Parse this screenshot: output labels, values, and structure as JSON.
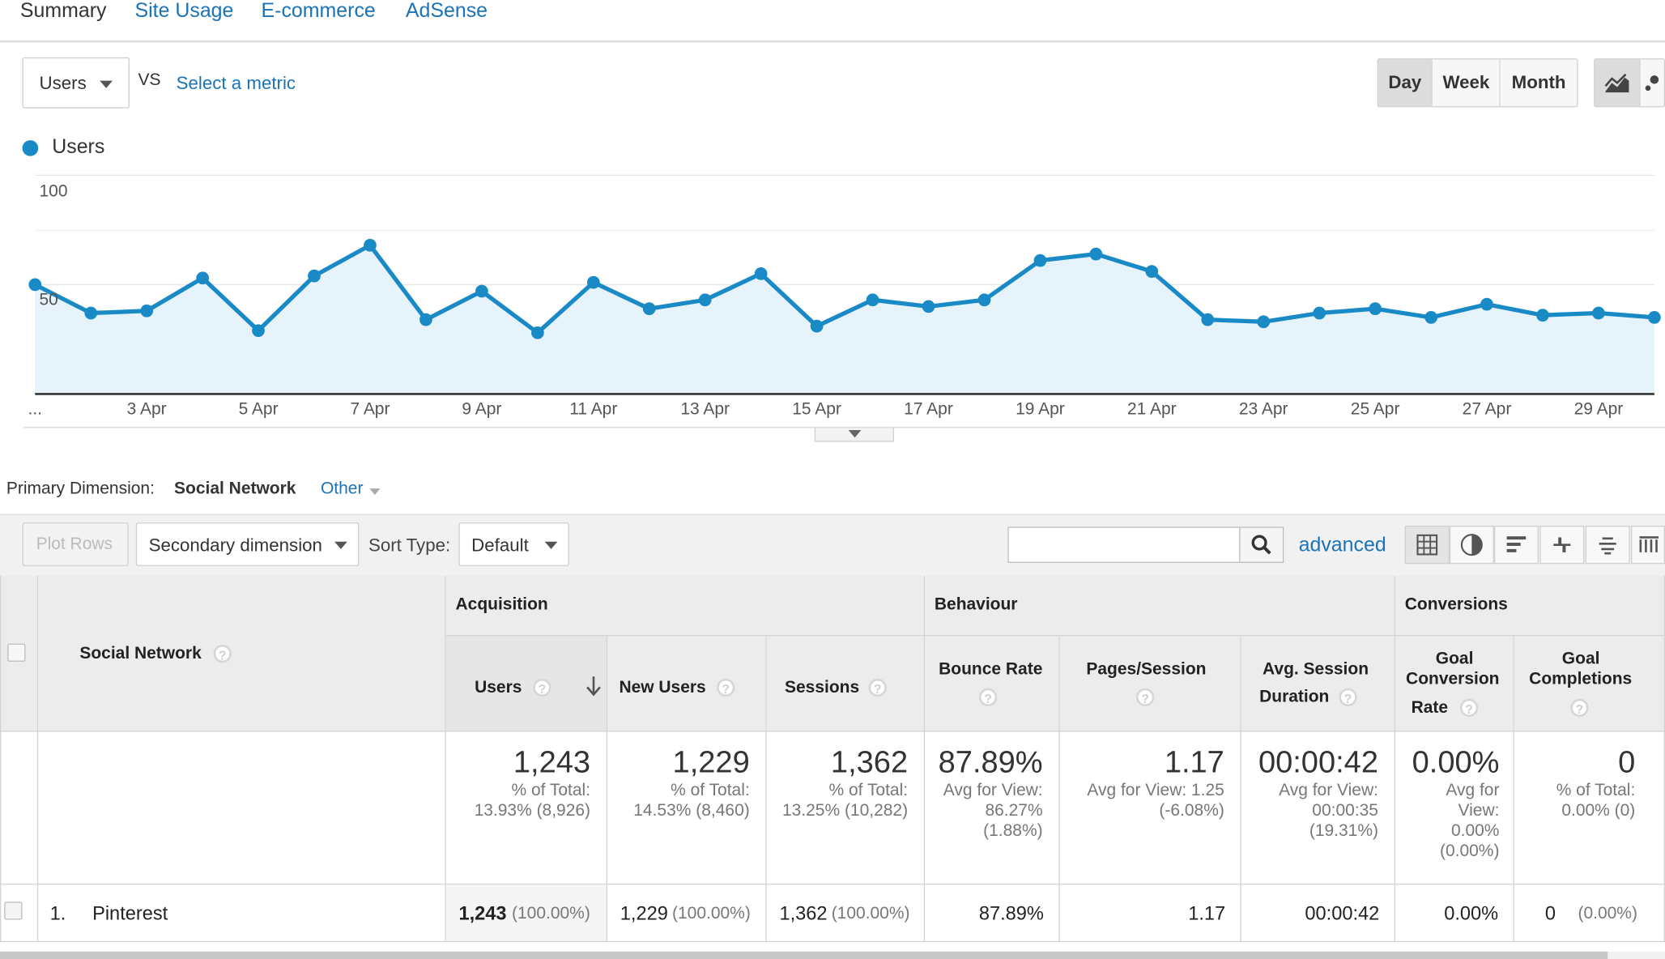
{
  "tabs": [
    "Summary",
    "Site Usage",
    "E-commerce",
    "AdSense"
  ],
  "metric": {
    "selected": "Users",
    "vs": "VS",
    "select_link": "Select a metric"
  },
  "time_buttons": [
    "Day",
    "Week",
    "Month"
  ],
  "time_selected": "Day",
  "chart_data": {
    "type": "area",
    "legend": "Users",
    "color": "#1a8ac6",
    "y_ticks": [
      "100",
      "50"
    ],
    "ylim": [
      0,
      100
    ],
    "x_tick_labels": [
      "...",
      "3 Apr",
      "5 Apr",
      "7 Apr",
      "9 Apr",
      "11 Apr",
      "13 Apr",
      "15 Apr",
      "17 Apr",
      "19 Apr",
      "21 Apr",
      "23 Apr",
      "25 Apr",
      "27 Apr",
      "29 Apr"
    ],
    "x": [
      "1 Apr",
      "2 Apr",
      "3 Apr",
      "4 Apr",
      "5 Apr",
      "6 Apr",
      "7 Apr",
      "8 Apr",
      "9 Apr",
      "10 Apr",
      "11 Apr",
      "12 Apr",
      "13 Apr",
      "14 Apr",
      "15 Apr",
      "16 Apr",
      "17 Apr",
      "18 Apr",
      "19 Apr",
      "20 Apr",
      "21 Apr",
      "22 Apr",
      "23 Apr",
      "24 Apr",
      "25 Apr",
      "26 Apr",
      "27 Apr",
      "28 Apr",
      "29 Apr",
      "30 Apr"
    ],
    "values": [
      50,
      37,
      38,
      53,
      29,
      54,
      68,
      34,
      47,
      28,
      51,
      39,
      43,
      55,
      31,
      43,
      40,
      43,
      61,
      64,
      56,
      34,
      33,
      37,
      39,
      35,
      41,
      36,
      37,
      35
    ]
  },
  "primary_dimension": {
    "label": "Primary Dimension:",
    "value": "Social Network",
    "other": "Other"
  },
  "toolbar": {
    "plot_rows": "Plot Rows",
    "secondary_dimension": "Secondary dimension",
    "sort_type_label": "Sort Type:",
    "sort_type_value": "Default",
    "search_placeholder": "",
    "advanced": "advanced"
  },
  "table": {
    "groups": {
      "acquisition": "Acquisition",
      "behaviour": "Behaviour",
      "conversions": "Conversions"
    },
    "dimension_header": "Social Network",
    "columns": {
      "users": "Users",
      "new_users": "New Users",
      "sessions": "Sessions",
      "bounce_rate": "Bounce Rate",
      "pages_session": "Pages/Session",
      "avg_session_duration_1": "Avg. Session",
      "avg_session_duration_2": "Duration",
      "goal_conv_1": "Goal",
      "goal_conv_2": "Conversion",
      "goal_conv_3": "Rate",
      "goal_comp_1": "Goal",
      "goal_comp_2": "Completions"
    },
    "totals": {
      "users": {
        "value": "1,243",
        "line1": "% of Total:",
        "line2": "13.93% (8,926)"
      },
      "new_users": {
        "value": "1,229",
        "line1": "% of Total:",
        "line2": "14.53% (8,460)"
      },
      "sessions": {
        "value": "1,362",
        "line1": "% of Total:",
        "line2": "13.25% (10,282)"
      },
      "bounce_rate": {
        "value": "87.89%",
        "line1": "Avg for View:",
        "line2": "86.27%",
        "line3": "(1.88%)"
      },
      "pages_session": {
        "value": "1.17",
        "line1": "Avg for View: 1.25",
        "line2": "(-6.08%)"
      },
      "avg_session_duration": {
        "value": "00:00:42",
        "line1": "Avg for View:",
        "line2": "00:00:35",
        "line3": "(19.31%)"
      },
      "goal_conversion_rate": {
        "value": "0.00%",
        "line1": "Avg for",
        "line2": "View:",
        "line3": "0.00%",
        "line4": "(0.00%)"
      },
      "goal_completions": {
        "value": "0",
        "line1": "% of Total:",
        "line2": "0.00% (0)"
      }
    },
    "rows": [
      {
        "index": "1.",
        "network": "Pinterest",
        "users": "1,243",
        "users_pct": "(100.00%)",
        "new_users": "1,229",
        "new_users_pct": "(100.00%)",
        "sessions": "1,362",
        "sessions_pct": "(100.00%)",
        "bounce_rate": "87.89%",
        "pages_session": "1.17",
        "avg_session_duration": "00:00:42",
        "goal_conversion_rate": "0.00%",
        "goal_completions": "0",
        "goal_completions_pct": "(0.00%)"
      }
    ]
  }
}
